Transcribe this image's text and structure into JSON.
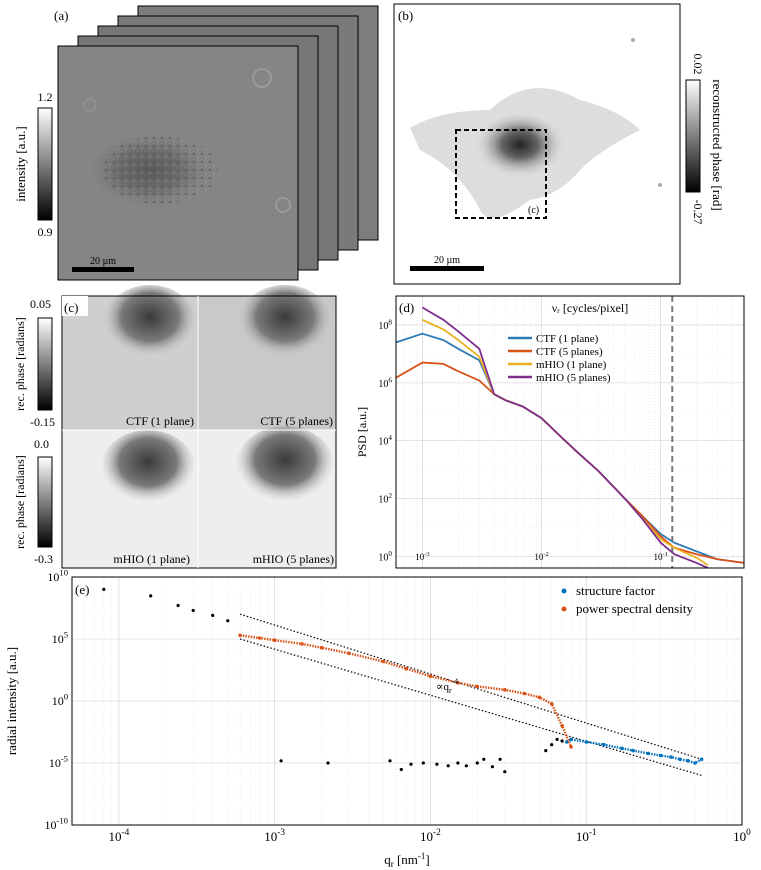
{
  "panel_a": {
    "label": "(a)",
    "colorbar": {
      "label": "intensity [a.u.]",
      "max": "1.2",
      "min": "0.9"
    },
    "scalebar": "20 µm",
    "stack_depth": 5
  },
  "panel_b": {
    "label": "(b)",
    "colorbar": {
      "label": "reconstructed phase [rad]",
      "max": "0.02",
      "min": "-0.27"
    },
    "scalebar": "20 µm",
    "roi_label": "(c)"
  },
  "panel_c": {
    "label": "(c)",
    "colorbar_top": {
      "label": "rec. phase [radians]",
      "max": "0.05",
      "min": "-0.15"
    },
    "colorbar_bottom": {
      "label": "rec. phase [radians]",
      "max": "0.0",
      "min": "-0.3"
    },
    "tiles": [
      "CTF (1 plane)",
      "CTF (5 planes)",
      "mHIO (1 plane)",
      "mHIO (5 planes)"
    ]
  },
  "chart_data": [
    {
      "panel": "(d)",
      "type": "line",
      "xlabel": "ν_r [cycles/pixel]",
      "ylabel": "PSD [a.u.]",
      "xscale": "log",
      "yscale": "log",
      "xlim": [
        0.0006,
        0.5
      ],
      "ylim": [
        0.4,
        1000000000
      ],
      "xticks": [
        0.001,
        0.01,
        0.1
      ],
      "xtick_labels": [
        "10^-3",
        "10^-2",
        "10^-1"
      ],
      "yticks": [
        1,
        100,
        10000,
        1000000,
        100000000
      ],
      "ytick_labels": [
        "10^0",
        "10^2",
        "10^4",
        "10^6",
        "10^8"
      ],
      "grid": true,
      "legend_position": "top-right",
      "cutoff_line_x": 0.125,
      "series": [
        {
          "name": "CTF (1 plane)",
          "color": "#2C7BB6",
          "x": [
            0.0006,
            0.001,
            0.0015,
            0.002,
            0.003,
            0.004,
            0.005,
            0.007,
            0.01,
            0.015,
            0.02,
            0.03,
            0.05,
            0.07,
            0.1,
            0.13,
            0.2,
            0.3,
            0.5
          ],
          "y": [
            25000000,
            50000000,
            30000000,
            15000000,
            6000000,
            400000,
            250000,
            150000,
            60000,
            12000,
            4000,
            900,
            100,
            25,
            6,
            3,
            1.5,
            0.8,
            0.6
          ]
        },
        {
          "name": "CTF (5 planes)",
          "color": "#D95319",
          "x": [
            0.0006,
            0.001,
            0.0015,
            0.002,
            0.003,
            0.004,
            0.005,
            0.007,
            0.01,
            0.015,
            0.02,
            0.03,
            0.05,
            0.07,
            0.1,
            0.13,
            0.2,
            0.3,
            0.5
          ],
          "y": [
            1500000,
            5000000,
            4500000,
            2500000,
            1200000,
            400000,
            250000,
            150000,
            60000,
            12000,
            4000,
            900,
            100,
            25,
            5,
            2,
            1.2,
            0.8,
            0.6
          ]
        },
        {
          "name": "mHIO (1 plane)",
          "color": "#EDB120",
          "x": [
            0.001,
            0.0015,
            0.002,
            0.003,
            0.004,
            0.005,
            0.007,
            0.01,
            0.015,
            0.02,
            0.03,
            0.05,
            0.07,
            0.1,
            0.13,
            0.2,
            0.25
          ],
          "y": [
            150000000,
            70000000,
            30000000,
            8000000,
            400000,
            250000,
            150000,
            60000,
            12000,
            4000,
            900,
            100,
            20,
            4,
            2,
            0.9,
            0.5
          ]
        },
        {
          "name": "mHIO (5 planes)",
          "color": "#7E2F8E",
          "x": [
            0.001,
            0.0015,
            0.002,
            0.003,
            0.004,
            0.005,
            0.007,
            0.01,
            0.015,
            0.02,
            0.03,
            0.05,
            0.07,
            0.1,
            0.13,
            0.2,
            0.25
          ],
          "y": [
            400000000,
            150000000,
            60000000,
            15000000,
            400000,
            250000,
            150000,
            60000,
            12000,
            4000,
            900,
            100,
            20,
            3,
            1.2,
            0.6,
            0.4
          ]
        }
      ]
    },
    {
      "panel": "(e)",
      "type": "scatter",
      "xlabel": "q_r [nm^-1]",
      "ylabel": "radial intensity [a.u.]",
      "xscale": "log",
      "yscale": "log",
      "xlim": [
        5e-05,
        1
      ],
      "ylim": [
        1e-10,
        10000000000.0
      ],
      "xticks": [
        0.0001,
        0.001,
        0.01,
        0.1,
        1
      ],
      "xtick_labels": [
        "10^-4",
        "10^-3",
        "10^-2",
        "10^-1",
        "10^0"
      ],
      "yticks": [
        1e-10,
        1e-05,
        1,
        100000,
        10000000000.0
      ],
      "ytick_labels": [
        "10^-10",
        "10^-5",
        "10^0",
        "10^5",
        "10^10"
      ],
      "grid": true,
      "legend_position": "top-right",
      "annotation": "∝q_r^-4",
      "series": [
        {
          "name": "structure factor",
          "color": "#0072BD",
          "x": [
            0.075,
            0.08,
            0.1,
            0.13,
            0.17,
            0.2,
            0.25,
            0.3,
            0.35,
            0.4,
            0.45,
            0.5,
            0.55
          ],
          "y": [
            0.0005,
            0.0008,
            0.0005,
            0.0003,
            0.00015,
            0.0001,
            6e-05,
            4e-05,
            3e-05,
            2e-05,
            1.5e-05,
            1e-05,
            2e-05
          ]
        },
        {
          "name": "power spectral density",
          "color": "#D95319",
          "x": [
            0.0006,
            0.0008,
            0.001,
            0.0015,
            0.002,
            0.003,
            0.005,
            0.007,
            0.01,
            0.015,
            0.02,
            0.03,
            0.04,
            0.05,
            0.06,
            0.07,
            0.08
          ],
          "y": [
            200000,
            120000,
            80000,
            40000,
            20000,
            7000,
            1500,
            400,
            100,
            30,
            15,
            8,
            4,
            2,
            0.6,
            0.01,
            0.0002
          ]
        },
        {
          "name": "",
          "color": "#000000",
          "x": [
            8e-05,
            0.00016,
            0.00024,
            0.0003,
            0.0004,
            0.0005,
            0.0011,
            0.0022,
            0.0055,
            0.0065,
            0.0075,
            0.009,
            0.011,
            0.013,
            0.015,
            0.017,
            0.02,
            0.022,
            0.025,
            0.028,
            0.03,
            0.055,
            0.06,
            0.065,
            0.07
          ],
          "y": [
            1000000000,
            300000000,
            50000000,
            20000000,
            8000000,
            3000000,
            1.5e-05,
            1e-05,
            1.5e-05,
            3e-06,
            8e-06,
            1e-05,
            8e-06,
            6e-06,
            1e-05,
            6e-06,
            1e-05,
            2e-05,
            5e-06,
            2e-05,
            2e-06,
            0.0001,
            0.0003,
            0.0008,
            0.0006
          ]
        }
      ]
    }
  ]
}
